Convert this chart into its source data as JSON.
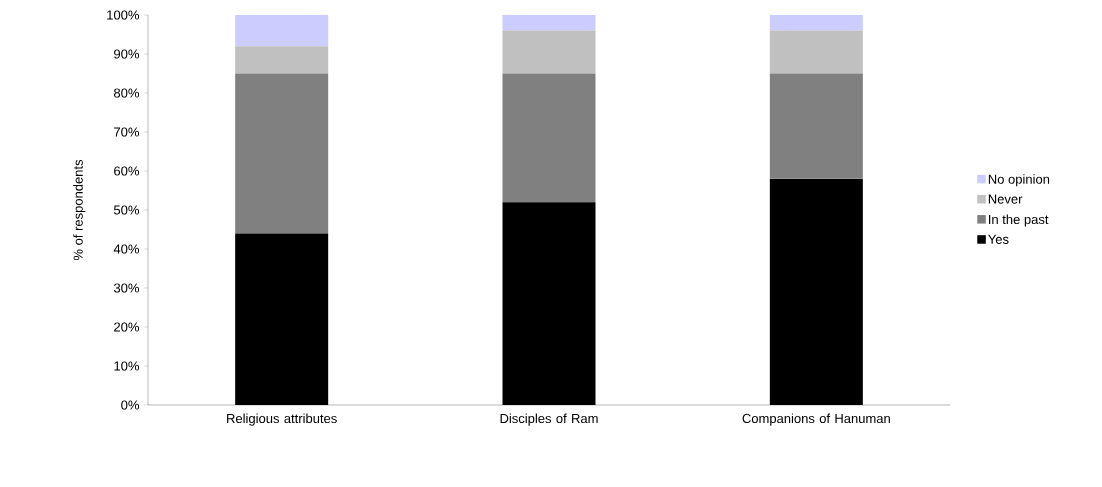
{
  "chart_data": {
    "type": "bar",
    "stacked": true,
    "ylabel": "% of respondents",
    "categories": [
      "Religious attributes",
      "Disciples of Ram",
      "Companions of Hanuman"
    ],
    "series": [
      {
        "name": "Yes",
        "color": "#000000",
        "values": [
          44,
          52,
          58
        ]
      },
      {
        "name": "In the past",
        "color": "#808080",
        "values": [
          41,
          33,
          27
        ]
      },
      {
        "name": "Never",
        "color": "#c0c0c0",
        "values": [
          7,
          11,
          11
        ]
      },
      {
        "name": "No opinion",
        "color": "#ccccff",
        "values": [
          8,
          4,
          4
        ]
      }
    ],
    "ylim": [
      0,
      100
    ],
    "yticks": [
      {
        "value": 0,
        "label": "0%"
      },
      {
        "value": 10,
        "label": "10%"
      },
      {
        "value": 20,
        "label": "20%"
      },
      {
        "value": 30,
        "label": "30%"
      },
      {
        "value": 40,
        "label": "40%"
      },
      {
        "value": 50,
        "label": "50%"
      },
      {
        "value": 60,
        "label": "60%"
      },
      {
        "value": 70,
        "label": "70%"
      },
      {
        "value": 80,
        "label": "80%"
      },
      {
        "value": 90,
        "label": "90%"
      },
      {
        "value": 100,
        "label": "100%"
      }
    ],
    "grid": false,
    "legend": "right"
  }
}
